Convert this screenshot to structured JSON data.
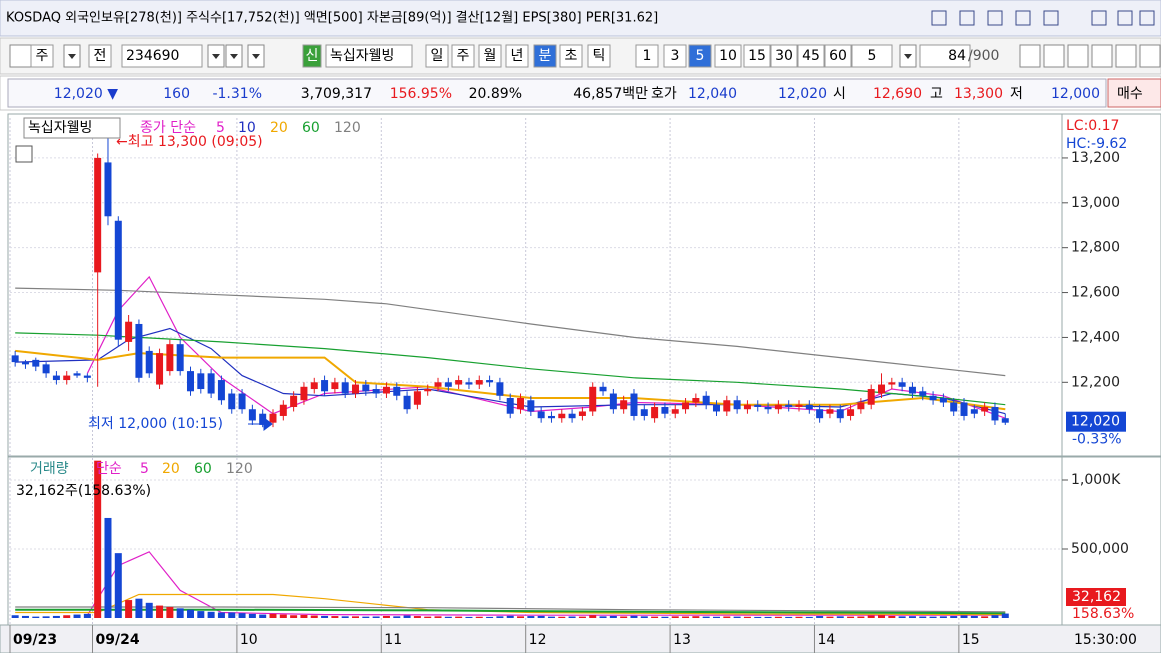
{
  "window": {
    "title": "KOSDAQ 외국인보유[278(천)] 주식수[17,752(천)] 액면[500] 자본금[89(억)] 결산[12월] EPS[380] PER[31.62]"
  },
  "toolbar": {
    "items": [
      "주",
      "전",
      "234690",
      "신",
      "녹십자웰빙",
      "일",
      "주",
      "월",
      "년",
      "분",
      "초",
      "틱",
      "1",
      "3",
      "5",
      "10",
      "15",
      "30",
      "45",
      "60",
      "5",
      "84",
      "/900"
    ]
  },
  "info_bar": {
    "items": [
      {
        "text": "12,020 ▼",
        "color": "#1a3ccc"
      },
      {
        "text": "160",
        "color": "#1a3ccc"
      },
      {
        "text": "-1.31%",
        "color": "#1a3ccc"
      },
      {
        "text": "3,709,317",
        "color": "#000000"
      },
      {
        "text": "156.95%",
        "color": "#e8191e"
      },
      {
        "text": "20.89%",
        "color": "#000000"
      },
      {
        "text": "46,857백만",
        "color": "#000000"
      },
      {
        "text": "호가",
        "color": "#000000"
      },
      {
        "text": "12,040",
        "color": "#1a3ccc"
      },
      {
        "text": "12,020",
        "color": "#1a3ccc"
      },
      {
        "text": "시",
        "color": "#000000"
      },
      {
        "text": "12,690",
        "color": "#e8191e"
      },
      {
        "text": "고",
        "color": "#000000"
      },
      {
        "text": "13,300",
        "color": "#e8191e"
      },
      {
        "text": "저",
        "color": "#000000"
      },
      {
        "text": "12,000",
        "color": "#1a3ccc"
      },
      {
        "text": "매수",
        "color": "#000000"
      }
    ]
  },
  "chart_data": [
    {
      "type": "candlestick",
      "panel_title": "녹십자웰빙",
      "legend_title": "종가 단순",
      "up_color": "#e8191e",
      "down_color": "#1446d4",
      "open": [
        12320,
        12290,
        12300,
        12280,
        12230,
        12210,
        12240,
        12230,
        12690,
        13180,
        12920,
        12380,
        12460,
        12340,
        12190,
        12250,
        12370,
        12250,
        12240,
        12240,
        12210,
        12150,
        12150,
        12080,
        12060,
        12020,
        12050,
        12090,
        12120,
        12170,
        12210,
        12170,
        12200,
        12150,
        12190,
        12170,
        12150,
        12180,
        12140,
        12100,
        12160,
        12180,
        12200,
        12190,
        12200,
        12190,
        12210,
        12200,
        12130,
        12080,
        12120,
        12070,
        12050,
        12040,
        12060,
        12050,
        12070,
        12180,
        12150,
        12080,
        12150,
        12080,
        12040,
        12090,
        12060,
        12080,
        12110,
        12140,
        12100,
        12070,
        12120,
        12080,
        12100,
        12090,
        12080,
        12100,
        12090,
        12100,
        12080,
        12060,
        12080,
        12050,
        12080,
        12100,
        12150,
        12190,
        12200,
        12180,
        12160,
        12140,
        12130,
        12110,
        12110,
        12080,
        12070,
        12090,
        12040
      ],
      "high": [
        12340,
        12300,
        12310,
        12290,
        12250,
        12250,
        12250,
        12240,
        13220,
        13300,
        12940,
        12500,
        12480,
        12360,
        12350,
        12390,
        12390,
        12270,
        12260,
        12260,
        12230,
        12170,
        12170,
        12100,
        12080,
        12080,
        12120,
        12160,
        12200,
        12220,
        12230,
        12220,
        12220,
        12210,
        12210,
        12190,
        12200,
        12200,
        12160,
        12180,
        12190,
        12220,
        12220,
        12230,
        12220,
        12230,
        12230,
        12220,
        12150,
        12150,
        12140,
        12090,
        12070,
        12080,
        12080,
        12090,
        12200,
        12200,
        12170,
        12140,
        12170,
        12100,
        12110,
        12110,
        12100,
        12130,
        12150,
        12160,
        12120,
        12140,
        12140,
        12120,
        12120,
        12110,
        12120,
        12120,
        12120,
        12120,
        12100,
        12100,
        12100,
        12100,
        12130,
        12190,
        12240,
        12220,
        12220,
        12200,
        12180,
        12160,
        12150,
        12130,
        12130,
        12100,
        12110,
        12110,
        12060
      ],
      "low": [
        12270,
        12260,
        12250,
        12220,
        12190,
        12190,
        12220,
        12200,
        12180,
        12900,
        12360,
        12340,
        12200,
        12220,
        12170,
        12230,
        12230,
        12140,
        12150,
        12130,
        12100,
        12060,
        12060,
        12010,
        12000,
        12000,
        12030,
        12070,
        12100,
        12150,
        12140,
        12150,
        12130,
        12130,
        12140,
        12130,
        12130,
        12120,
        12060,
        12080,
        12140,
        12160,
        12160,
        12170,
        12170,
        12170,
        12180,
        12120,
        12040,
        12060,
        12050,
        12020,
        12020,
        12020,
        12020,
        12030,
        12050,
        12140,
        12060,
        12060,
        12030,
        12030,
        12020,
        12040,
        12040,
        12060,
        12090,
        12080,
        12050,
        12050,
        12060,
        12060,
        12070,
        12060,
        12060,
        12070,
        12070,
        12060,
        12020,
        12040,
        12020,
        12030,
        12060,
        12080,
        12130,
        12170,
        12160,
        12130,
        12120,
        12100,
        12090,
        12050,
        12030,
        12040,
        12050,
        12010,
        12010
      ],
      "close": [
        12290,
        12280,
        12270,
        12240,
        12210,
        12230,
        12230,
        12220,
        13200,
        12940,
        12390,
        12470,
        12220,
        12240,
        12330,
        12370,
        12250,
        12160,
        12170,
        12150,
        12120,
        12080,
        12080,
        12030,
        12010,
        12060,
        12100,
        12140,
        12180,
        12200,
        12160,
        12200,
        12150,
        12190,
        12160,
        12150,
        12180,
        12140,
        12080,
        12160,
        12170,
        12200,
        12180,
        12210,
        12190,
        12210,
        12200,
        12140,
        12060,
        12130,
        12070,
        12040,
        12040,
        12060,
        12040,
        12070,
        12180,
        12160,
        12080,
        12120,
        12050,
        12050,
        12090,
        12060,
        12080,
        12110,
        12130,
        12100,
        12070,
        12120,
        12080,
        12100,
        12090,
        12080,
        12100,
        12090,
        12100,
        12080,
        12040,
        12080,
        12040,
        12080,
        12110,
        12170,
        12190,
        12200,
        12180,
        12150,
        12140,
        12120,
        12110,
        12070,
        12050,
        12060,
        12090,
        12030,
        12020
      ],
      "series": [
        {
          "name": "5",
          "color": "#e020c8",
          "x": [
            7,
            10,
            13,
            16,
            20,
            25,
            30,
            40,
            50,
            56,
            60,
            70,
            80,
            85,
            90,
            96
          ],
          "values": [
            12240,
            12520,
            12670,
            12400,
            12220,
            12060,
            12150,
            12180,
            12070,
            12090,
            12110,
            12100,
            12070,
            12170,
            12140,
            12040
          ]
        },
        {
          "name": "10",
          "color": "#2030c0",
          "x": [
            0,
            8,
            11,
            15,
            19,
            22,
            26,
            30,
            40,
            50,
            60,
            70,
            80,
            85,
            90,
            96
          ],
          "values": [
            12290,
            12300,
            12390,
            12440,
            12350,
            12230,
            12150,
            12140,
            12170,
            12090,
            12100,
            12100,
            12090,
            12150,
            12130,
            12060
          ]
        },
        {
          "name": "20",
          "color": "#f0a800",
          "x": [
            0,
            8,
            12,
            20,
            30,
            33,
            40,
            50,
            60,
            70,
            80,
            88,
            96
          ],
          "values": [
            12340,
            12300,
            12330,
            12310,
            12310,
            12200,
            12180,
            12130,
            12130,
            12100,
            12100,
            12130,
            12080
          ]
        },
        {
          "name": "60",
          "color": "#18a030",
          "x": [
            0,
            8,
            20,
            30,
            40,
            50,
            60,
            70,
            80,
            90,
            96
          ],
          "values": [
            12420,
            12410,
            12380,
            12350,
            12310,
            12260,
            12220,
            12200,
            12170,
            12130,
            12100
          ]
        },
        {
          "name": "120",
          "color": "#808080",
          "x": [
            0,
            10,
            20,
            30,
            36,
            50,
            60,
            70,
            80,
            90,
            96
          ],
          "values": [
            12620,
            12610,
            12590,
            12570,
            12550,
            12460,
            12400,
            12360,
            12310,
            12260,
            12230
          ]
        }
      ],
      "ylim": [
        11876,
        13378
      ],
      "yticks": [
        {
          "value": 12200,
          "label": "12,200"
        },
        {
          "value": 12400,
          "label": "12,400"
        },
        {
          "value": 12600,
          "label": "12,600"
        },
        {
          "value": 12800,
          "label": "12,800"
        },
        {
          "value": 13000,
          "label": "13,000"
        },
        {
          "value": 13200,
          "label": "13,200"
        }
      ],
      "annotations": [
        {
          "text": "←최고 13,300 (09:05)",
          "color": "#e8191e"
        },
        {
          "text": "최저 12,000 (10:15)",
          "color": "#1446d4"
        }
      ],
      "last_label": "12,020",
      "last_change": "-0.33%",
      "lc": "LC:0.17",
      "hc": "HC:-9.62"
    },
    {
      "type": "bar",
      "panel_title": "거래량",
      "legend_title": "단순",
      "categories": [
        "09/23",
        null,
        null,
        null,
        null,
        null,
        null,
        null,
        "09/24",
        null,
        null,
        null,
        null,
        null,
        null,
        null,
        null,
        null,
        null,
        null,
        null,
        null,
        "10",
        null,
        null,
        null,
        null,
        null,
        null,
        null,
        null,
        null,
        null,
        null,
        null,
        null,
        "11",
        null,
        null,
        null,
        null,
        null,
        null,
        null,
        null,
        null,
        null,
        null,
        null,
        null,
        "12",
        null,
        null,
        null,
        null,
        null,
        null,
        null,
        null,
        null,
        null,
        null,
        null,
        null,
        "13",
        null,
        null,
        null,
        null,
        null,
        null,
        null,
        null,
        null,
        null,
        null,
        null,
        null,
        "14",
        null,
        null,
        null,
        null,
        null,
        null,
        null,
        null,
        null,
        null,
        null,
        null,
        null,
        "15",
        null,
        null,
        null,
        null,
        null,
        null,
        null,
        null,
        null
      ],
      "values": [
        20000,
        15000,
        10000,
        12000,
        15000,
        20000,
        25000,
        30000,
        1140000,
        725000,
        470000,
        130000,
        140000,
        110000,
        90000,
        80000,
        70000,
        60000,
        50000,
        45000,
        40000,
        40000,
        35000,
        30000,
        25000,
        30000,
        25000,
        20000,
        22000,
        18000,
        15000,
        14000,
        12000,
        12000,
        10000,
        11000,
        15000,
        12000,
        18000,
        14000,
        10000,
        12000,
        9000,
        10000,
        8000,
        9000,
        8000,
        12000,
        16000,
        12000,
        14000,
        15000,
        10000,
        9000,
        11000,
        10000,
        20000,
        12000,
        15000,
        11000,
        16000,
        12000,
        10000,
        9000,
        12000,
        11000,
        13000,
        10000,
        9000,
        11000,
        10000,
        9000,
        8000,
        8000,
        9000,
        8000,
        9000,
        8000,
        14000,
        10000,
        12000,
        10000,
        11000,
        18000,
        20000,
        15000,
        12000,
        13000,
        11000,
        10000,
        12000,
        14000,
        18000,
        15000,
        12000,
        20000,
        32162,
        null,
        null,
        null,
        null,
        null
      ],
      "series": [
        {
          "name": "5",
          "color": "#e020c8",
          "x": [
            7,
            10,
            13,
            16,
            20,
            30,
            50,
            70,
            96
          ],
          "values": [
            20000,
            380000,
            480000,
            200000,
            40000,
            25000,
            20000,
            20000,
            20000
          ]
        },
        {
          "name": "20",
          "color": "#f0a800",
          "x": [
            0,
            8,
            12,
            20,
            25,
            30,
            40,
            50,
            70,
            96
          ],
          "values": [
            40000,
            40000,
            170000,
            170000,
            170000,
            140000,
            60000,
            40000,
            30000,
            25000
          ]
        },
        {
          "name": "60",
          "color": "#18a030",
          "x": [
            0,
            8,
            20,
            40,
            60,
            96
          ],
          "values": [
            60000,
            60000,
            60000,
            55000,
            45000,
            35000
          ]
        },
        {
          "name": "120",
          "color": "#808080",
          "x": [
            0,
            20,
            40,
            60,
            96
          ],
          "values": [
            80000,
            80000,
            75000,
            60000,
            45000
          ]
        }
      ],
      "ylim": [
        0,
        1145000
      ],
      "yticks": [
        {
          "value": 500000,
          "label": "500,000"
        },
        {
          "value": 1000000,
          "label": "1,000K"
        }
      ],
      "info": "32,162주(158.63%)",
      "last_label": "32,162",
      "last_ratio": "158.63%",
      "time_label": "15:30:00"
    }
  ]
}
